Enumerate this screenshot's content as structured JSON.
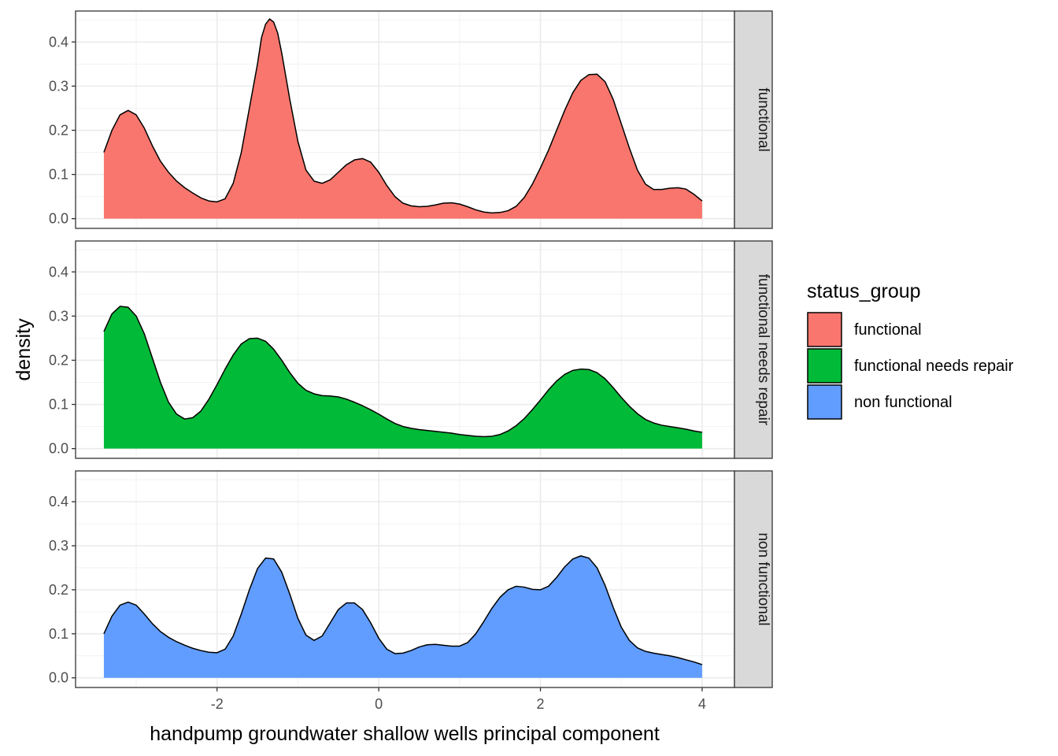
{
  "chart_data": {
    "type": "area",
    "facet": "rows",
    "xlabel": "handpump groundwater shallow wells principal component",
    "ylabel": "density",
    "xlim": [
      -3.75,
      4.4
    ],
    "ylim": [
      -0.022,
      0.47
    ],
    "x_ticks": [
      -2,
      0,
      2,
      4
    ],
    "x_tick_labels": [
      "-2",
      "0",
      "2",
      "4"
    ],
    "y_ticks": [
      0.0,
      0.1,
      0.2,
      0.3,
      0.4
    ],
    "y_tick_labels": [
      "0.0",
      "0.1",
      "0.2",
      "0.3",
      "0.4"
    ],
    "grid": true,
    "legend": {
      "title": "status_group",
      "position": "right",
      "entries": [
        "functional",
        "functional needs repair",
        "non functional"
      ]
    },
    "series": [
      {
        "name": "functional",
        "color": "#F8766D",
        "points": [
          [
            -3.4,
            0.15
          ],
          [
            -3.3,
            0.2
          ],
          [
            -3.2,
            0.235
          ],
          [
            -3.1,
            0.245
          ],
          [
            -3.0,
            0.235
          ],
          [
            -2.9,
            0.205
          ],
          [
            -2.8,
            0.165
          ],
          [
            -2.7,
            0.13
          ],
          [
            -2.6,
            0.105
          ],
          [
            -2.5,
            0.085
          ],
          [
            -2.4,
            0.07
          ],
          [
            -2.3,
            0.058
          ],
          [
            -2.2,
            0.047
          ],
          [
            -2.1,
            0.04
          ],
          [
            -2.0,
            0.038
          ],
          [
            -1.9,
            0.045
          ],
          [
            -1.8,
            0.08
          ],
          [
            -1.7,
            0.15
          ],
          [
            -1.6,
            0.25
          ],
          [
            -1.5,
            0.35
          ],
          [
            -1.45,
            0.41
          ],
          [
            -1.4,
            0.44
          ],
          [
            -1.35,
            0.452
          ],
          [
            -1.3,
            0.445
          ],
          [
            -1.25,
            0.42
          ],
          [
            -1.2,
            0.375
          ],
          [
            -1.1,
            0.27
          ],
          [
            -1.0,
            0.175
          ],
          [
            -0.9,
            0.11
          ],
          [
            -0.8,
            0.085
          ],
          [
            -0.7,
            0.08
          ],
          [
            -0.6,
            0.088
          ],
          [
            -0.5,
            0.105
          ],
          [
            -0.4,
            0.122
          ],
          [
            -0.3,
            0.133
          ],
          [
            -0.2,
            0.136
          ],
          [
            -0.1,
            0.128
          ],
          [
            0.0,
            0.105
          ],
          [
            0.1,
            0.075
          ],
          [
            0.2,
            0.05
          ],
          [
            0.3,
            0.035
          ],
          [
            0.4,
            0.029
          ],
          [
            0.5,
            0.027
          ],
          [
            0.6,
            0.028
          ],
          [
            0.7,
            0.031
          ],
          [
            0.8,
            0.035
          ],
          [
            0.9,
            0.036
          ],
          [
            1.0,
            0.033
          ],
          [
            1.1,
            0.027
          ],
          [
            1.2,
            0.02
          ],
          [
            1.3,
            0.015
          ],
          [
            1.4,
            0.013
          ],
          [
            1.5,
            0.014
          ],
          [
            1.6,
            0.018
          ],
          [
            1.7,
            0.028
          ],
          [
            1.8,
            0.048
          ],
          [
            1.9,
            0.078
          ],
          [
            2.0,
            0.115
          ],
          [
            2.1,
            0.155
          ],
          [
            2.2,
            0.2
          ],
          [
            2.3,
            0.245
          ],
          [
            2.4,
            0.285
          ],
          [
            2.5,
            0.313
          ],
          [
            2.6,
            0.326
          ],
          [
            2.7,
            0.327
          ],
          [
            2.8,
            0.31
          ],
          [
            2.9,
            0.27
          ],
          [
            3.0,
            0.215
          ],
          [
            3.1,
            0.16
          ],
          [
            3.2,
            0.11
          ],
          [
            3.3,
            0.078
          ],
          [
            3.4,
            0.066
          ],
          [
            3.5,
            0.066
          ],
          [
            3.6,
            0.069
          ],
          [
            3.7,
            0.07
          ],
          [
            3.8,
            0.067
          ],
          [
            3.9,
            0.055
          ],
          [
            4.0,
            0.04
          ]
        ]
      },
      {
        "name": "functional needs repair",
        "color": "#00BA38",
        "points": [
          [
            -3.4,
            0.265
          ],
          [
            -3.3,
            0.305
          ],
          [
            -3.2,
            0.322
          ],
          [
            -3.1,
            0.32
          ],
          [
            -3.0,
            0.3
          ],
          [
            -2.9,
            0.26
          ],
          [
            -2.8,
            0.205
          ],
          [
            -2.7,
            0.15
          ],
          [
            -2.6,
            0.105
          ],
          [
            -2.5,
            0.078
          ],
          [
            -2.4,
            0.067
          ],
          [
            -2.3,
            0.07
          ],
          [
            -2.2,
            0.085
          ],
          [
            -2.1,
            0.112
          ],
          [
            -2.0,
            0.145
          ],
          [
            -1.9,
            0.18
          ],
          [
            -1.8,
            0.212
          ],
          [
            -1.7,
            0.237
          ],
          [
            -1.6,
            0.249
          ],
          [
            -1.5,
            0.25
          ],
          [
            -1.4,
            0.243
          ],
          [
            -1.3,
            0.225
          ],
          [
            -1.2,
            0.2
          ],
          [
            -1.1,
            0.172
          ],
          [
            -1.0,
            0.148
          ],
          [
            -0.9,
            0.132
          ],
          [
            -0.8,
            0.124
          ],
          [
            -0.7,
            0.12
          ],
          [
            -0.6,
            0.119
          ],
          [
            -0.5,
            0.117
          ],
          [
            -0.4,
            0.112
          ],
          [
            -0.3,
            0.105
          ],
          [
            -0.2,
            0.097
          ],
          [
            -0.1,
            0.088
          ],
          [
            0.0,
            0.078
          ],
          [
            0.1,
            0.067
          ],
          [
            0.2,
            0.057
          ],
          [
            0.3,
            0.05
          ],
          [
            0.4,
            0.046
          ],
          [
            0.5,
            0.043
          ],
          [
            0.6,
            0.041
          ],
          [
            0.7,
            0.039
          ],
          [
            0.8,
            0.037
          ],
          [
            0.9,
            0.035
          ],
          [
            1.0,
            0.032
          ],
          [
            1.1,
            0.03
          ],
          [
            1.2,
            0.028
          ],
          [
            1.3,
            0.027
          ],
          [
            1.4,
            0.028
          ],
          [
            1.5,
            0.032
          ],
          [
            1.6,
            0.04
          ],
          [
            1.7,
            0.052
          ],
          [
            1.8,
            0.068
          ],
          [
            1.9,
            0.088
          ],
          [
            2.0,
            0.11
          ],
          [
            2.1,
            0.133
          ],
          [
            2.2,
            0.153
          ],
          [
            2.3,
            0.168
          ],
          [
            2.4,
            0.177
          ],
          [
            2.5,
            0.18
          ],
          [
            2.6,
            0.179
          ],
          [
            2.7,
            0.172
          ],
          [
            2.8,
            0.158
          ],
          [
            2.9,
            0.138
          ],
          [
            3.0,
            0.116
          ],
          [
            3.1,
            0.096
          ],
          [
            3.2,
            0.079
          ],
          [
            3.3,
            0.066
          ],
          [
            3.4,
            0.058
          ],
          [
            3.5,
            0.053
          ],
          [
            3.6,
            0.05
          ],
          [
            3.7,
            0.047
          ],
          [
            3.8,
            0.044
          ],
          [
            3.9,
            0.04
          ],
          [
            4.0,
            0.037
          ]
        ]
      },
      {
        "name": "non functional",
        "color": "#619CFF",
        "points": [
          [
            -3.4,
            0.1
          ],
          [
            -3.3,
            0.14
          ],
          [
            -3.2,
            0.165
          ],
          [
            -3.1,
            0.172
          ],
          [
            -3.0,
            0.165
          ],
          [
            -2.9,
            0.145
          ],
          [
            -2.8,
            0.123
          ],
          [
            -2.7,
            0.105
          ],
          [
            -2.6,
            0.092
          ],
          [
            -2.5,
            0.082
          ],
          [
            -2.4,
            0.074
          ],
          [
            -2.3,
            0.067
          ],
          [
            -2.2,
            0.062
          ],
          [
            -2.1,
            0.058
          ],
          [
            -2.0,
            0.057
          ],
          [
            -1.9,
            0.065
          ],
          [
            -1.8,
            0.095
          ],
          [
            -1.7,
            0.145
          ],
          [
            -1.6,
            0.2
          ],
          [
            -1.5,
            0.248
          ],
          [
            -1.4,
            0.272
          ],
          [
            -1.3,
            0.27
          ],
          [
            -1.2,
            0.24
          ],
          [
            -1.1,
            0.19
          ],
          [
            -1.0,
            0.135
          ],
          [
            -0.9,
            0.097
          ],
          [
            -0.8,
            0.085
          ],
          [
            -0.7,
            0.095
          ],
          [
            -0.6,
            0.125
          ],
          [
            -0.5,
            0.155
          ],
          [
            -0.4,
            0.17
          ],
          [
            -0.3,
            0.17
          ],
          [
            -0.2,
            0.155
          ],
          [
            -0.1,
            0.125
          ],
          [
            0.0,
            0.09
          ],
          [
            0.1,
            0.065
          ],
          [
            0.2,
            0.055
          ],
          [
            0.3,
            0.056
          ],
          [
            0.4,
            0.062
          ],
          [
            0.5,
            0.07
          ],
          [
            0.6,
            0.075
          ],
          [
            0.7,
            0.076
          ],
          [
            0.8,
            0.074
          ],
          [
            0.9,
            0.072
          ],
          [
            1.0,
            0.072
          ],
          [
            1.1,
            0.08
          ],
          [
            1.2,
            0.1
          ],
          [
            1.3,
            0.128
          ],
          [
            1.4,
            0.158
          ],
          [
            1.5,
            0.183
          ],
          [
            1.6,
            0.2
          ],
          [
            1.7,
            0.208
          ],
          [
            1.8,
            0.206
          ],
          [
            1.9,
            0.201
          ],
          [
            2.0,
            0.2
          ],
          [
            2.1,
            0.208
          ],
          [
            2.2,
            0.228
          ],
          [
            2.3,
            0.252
          ],
          [
            2.4,
            0.27
          ],
          [
            2.5,
            0.277
          ],
          [
            2.6,
            0.272
          ],
          [
            2.7,
            0.25
          ],
          [
            2.8,
            0.21
          ],
          [
            2.9,
            0.16
          ],
          [
            3.0,
            0.115
          ],
          [
            3.1,
            0.085
          ],
          [
            3.2,
            0.068
          ],
          [
            3.3,
            0.06
          ],
          [
            3.4,
            0.056
          ],
          [
            3.5,
            0.053
          ],
          [
            3.6,
            0.05
          ],
          [
            3.7,
            0.046
          ],
          [
            3.8,
            0.041
          ],
          [
            3.9,
            0.036
          ],
          [
            4.0,
            0.03
          ]
        ]
      }
    ]
  }
}
